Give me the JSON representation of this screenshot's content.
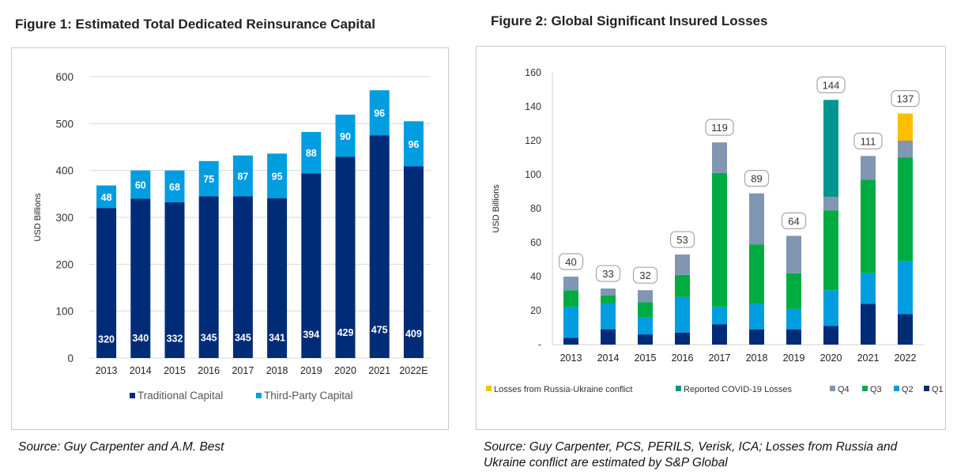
{
  "figure1": {
    "title": "Figure 1: Estimated Total Dedicated Reinsurance Capital",
    "source": "Source: Guy Carpenter and A.M. Best"
  },
  "figure2": {
    "title": "Figure 2: Global Significant Insured Losses",
    "source": "Source: Guy Carpenter, PCS, PERILS, Verisk, ICA; Losses from Russia and Ukraine conflict are estimated by S&P Global"
  },
  "chart_data": [
    {
      "type": "bar",
      "stacked": true,
      "ylabel": "USD Billions",
      "ylim": [
        0,
        600
      ],
      "yticks": [
        "0",
        "100",
        "200",
        "300",
        "400",
        "500",
        "600"
      ],
      "grid": true,
      "legend_position": "bottom",
      "categories": [
        "2013",
        "2014",
        "2015",
        "2016",
        "2017",
        "2018",
        "2019",
        "2020",
        "2021",
        "2022E"
      ],
      "series": [
        {
          "name": "Traditional Capital",
          "color": "#002c77",
          "values": [
            320,
            340,
            332,
            345,
            345,
            341,
            394,
            429,
            475,
            409
          ]
        },
        {
          "name": "Third-Party Capital",
          "color": "#009de0",
          "values": [
            48,
            60,
            68,
            75,
            87,
            95,
            88,
            90,
            96,
            96
          ]
        }
      ]
    },
    {
      "type": "bar",
      "stacked": true,
      "ylabel": "USD Billions",
      "ylim": [
        0,
        160
      ],
      "yticks": [
        "-",
        "20",
        "40",
        "60",
        "80",
        "100",
        "120",
        "140",
        "160"
      ],
      "grid": false,
      "legend_position": "bottom",
      "categories": [
        "2013",
        "2014",
        "2015",
        "2016",
        "2017",
        "2018",
        "2019",
        "2020",
        "2021",
        "2022"
      ],
      "totals": [
        40,
        33,
        32,
        53,
        119,
        89,
        64,
        144,
        111,
        137
      ],
      "series": [
        {
          "name": "Q1",
          "color": "#002c77",
          "values": [
            4,
            9,
            6,
            7,
            12,
            9,
            9,
            11,
            24,
            18
          ]
        },
        {
          "name": "Q2",
          "color": "#009de0",
          "values": [
            18,
            15,
            10,
            21,
            10,
            15,
            12,
            21,
            18,
            31
          ]
        },
        {
          "name": "Q3",
          "color": "#00ac41",
          "values": [
            10,
            5,
            9,
            13,
            79,
            35,
            21,
            47,
            55,
            61
          ]
        },
        {
          "name": "Q4",
          "color": "#8096b2",
          "values": [
            8,
            4,
            7,
            12,
            18,
            30,
            22,
            8,
            14,
            10
          ]
        },
        {
          "name": "Reported COVID-19 Losses",
          "color": "#00968f",
          "values": [
            0,
            0,
            0,
            0,
            0,
            0,
            0,
            57,
            0,
            0
          ]
        },
        {
          "name": "Losses from Russia-Ukraine conflict",
          "color": "#ffbe00",
          "values": [
            0,
            0,
            0,
            0,
            0,
            0,
            0,
            0,
            0,
            16
          ]
        }
      ],
      "legend_order": [
        "Losses from Russia-Ukraine conflict",
        "Reported COVID-19 Losses",
        "Q4",
        "Q3",
        "Q2",
        "Q1"
      ]
    }
  ]
}
